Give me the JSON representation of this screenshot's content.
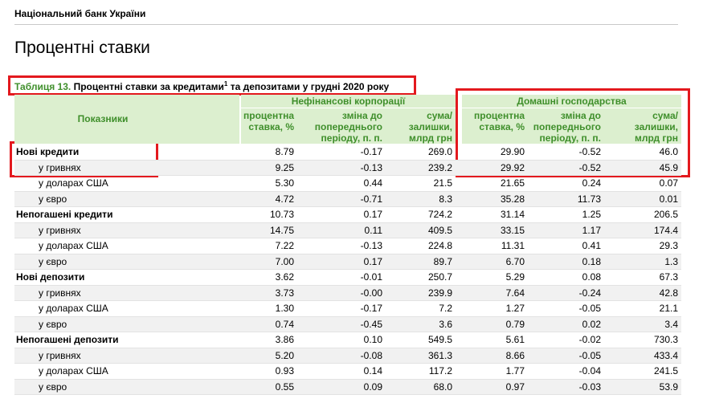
{
  "header": {
    "org": "Національний банк України",
    "title": "Процентні ставки"
  },
  "caption": {
    "label": "Таблиця 13.",
    "text_before": "Процентні ставки за кредитами",
    "footnote": "1",
    "text_after": "та депозитами у грудні 2020 року"
  },
  "table": {
    "row_header": "Показники",
    "groups": [
      "Нефінансові корпорації",
      "Домашні господарства"
    ],
    "columns": [
      [
        "процентна",
        "ставка, %"
      ],
      [
        "зміна до",
        "попереднього",
        "періоду, п. п."
      ],
      [
        "сума/",
        "залишки,",
        "млрд грн"
      ],
      [
        "процентна",
        "ставка, %"
      ],
      [
        "зміна до",
        "попереднього",
        "періоду, п. п."
      ],
      [
        "сума/",
        "залишки,",
        "млрд грн"
      ]
    ],
    "rows": [
      [
        "Нові кредити",
        "8.79",
        "-0.17",
        "269.0",
        "29.90",
        "-0.52",
        "46.0"
      ],
      [
        "у гривнях",
        "9.25",
        "-0.13",
        "239.2",
        "29.92",
        "-0.52",
        "45.9"
      ],
      [
        "у доларах США",
        "5.30",
        "0.44",
        "21.5",
        "21.65",
        "0.24",
        "0.07"
      ],
      [
        "у євро",
        "4.72",
        "-0.71",
        "8.3",
        "35.28",
        "11.73",
        "0.01"
      ],
      [
        "Непогашені кредити",
        "10.73",
        "0.17",
        "724.2",
        "31.14",
        "1.25",
        "206.5"
      ],
      [
        "у гривнях",
        "14.75",
        "0.11",
        "409.5",
        "33.15",
        "1.17",
        "174.4"
      ],
      [
        "у доларах США",
        "7.22",
        "-0.13",
        "224.8",
        "11.31",
        "0.41",
        "29.3"
      ],
      [
        "у євро",
        "7.00",
        "0.17",
        "89.7",
        "6.70",
        "0.18",
        "1.3"
      ],
      [
        "Нові депозити",
        "3.62",
        "-0.01",
        "250.7",
        "5.29",
        "0.08",
        "67.3"
      ],
      [
        "у гривнях",
        "3.73",
        "-0.00",
        "239.9",
        "7.64",
        "-0.24",
        "42.8"
      ],
      [
        "у доларах США",
        "1.30",
        "-0.17",
        "7.2",
        "1.27",
        "-0.05",
        "21.1"
      ],
      [
        "у євро",
        "0.74",
        "-0.45",
        "3.6",
        "0.79",
        "0.02",
        "3.4"
      ],
      [
        "Непогашені депозити",
        "3.86",
        "0.10",
        "549.5",
        "5.61",
        "-0.02",
        "730.3"
      ],
      [
        "у гривнях",
        "5.20",
        "-0.08",
        "361.3",
        "8.66",
        "-0.05",
        "433.4"
      ],
      [
        "у доларах США",
        "0.93",
        "0.14",
        "117.2",
        "1.77",
        "-0.04",
        "241.5"
      ],
      [
        "у євро",
        "0.55",
        "0.09",
        "68.0",
        "0.97",
        "-0.03",
        "53.9"
      ]
    ]
  }
}
